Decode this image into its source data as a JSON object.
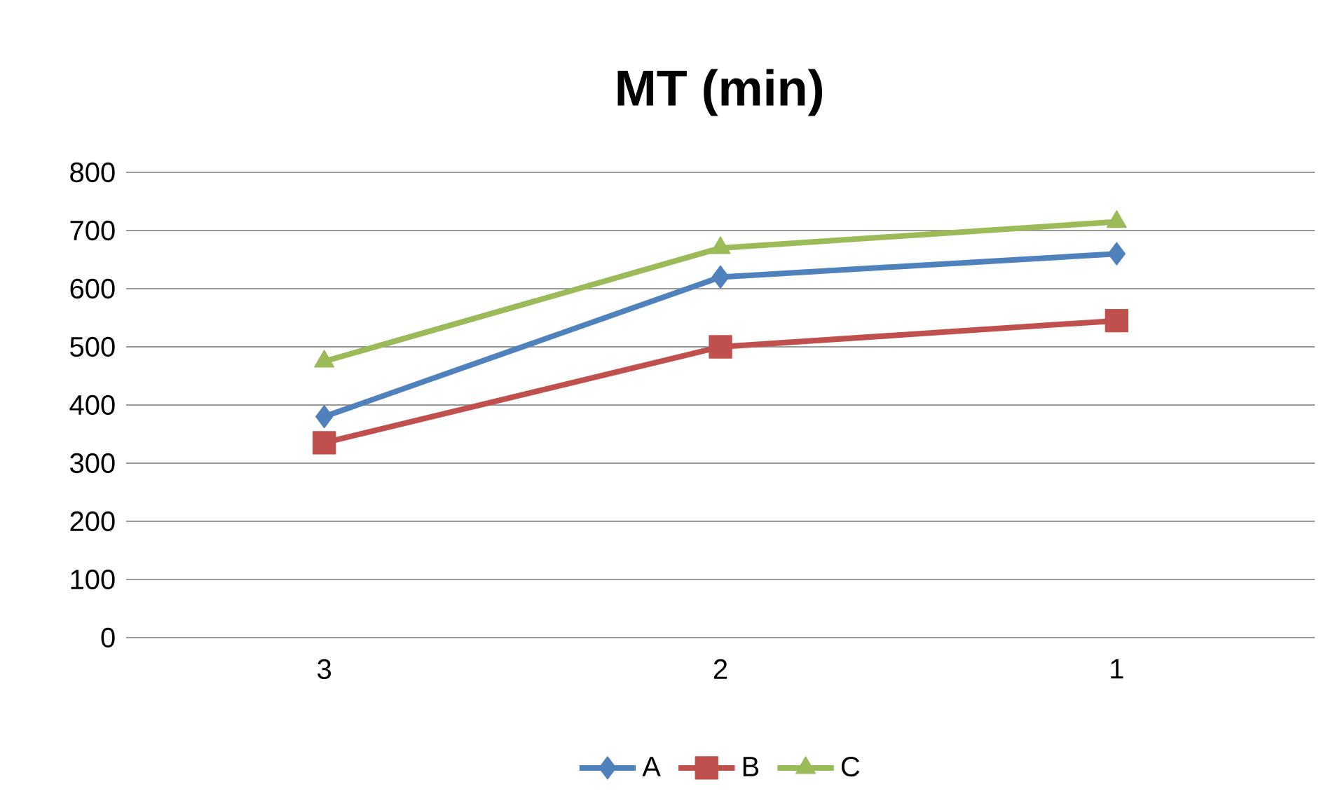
{
  "chart_data": {
    "type": "line",
    "title": "MT (min)",
    "categories": [
      "3",
      "2",
      "1"
    ],
    "series": [
      {
        "name": "A",
        "color": "#4f81bd",
        "marker": "diamond",
        "values": [
          380,
          620,
          660
        ]
      },
      {
        "name": "B",
        "color": "#c0504d",
        "marker": "square",
        "values": [
          335,
          500,
          545
        ]
      },
      {
        "name": "C",
        "color": "#9bbb59",
        "marker": "triangle",
        "values": [
          475,
          670,
          715
        ]
      }
    ],
    "ylim": [
      0,
      800
    ],
    "yticks": [
      0,
      100,
      200,
      300,
      400,
      500,
      600,
      700,
      800
    ],
    "grid": "y",
    "legend": "bottom"
  }
}
